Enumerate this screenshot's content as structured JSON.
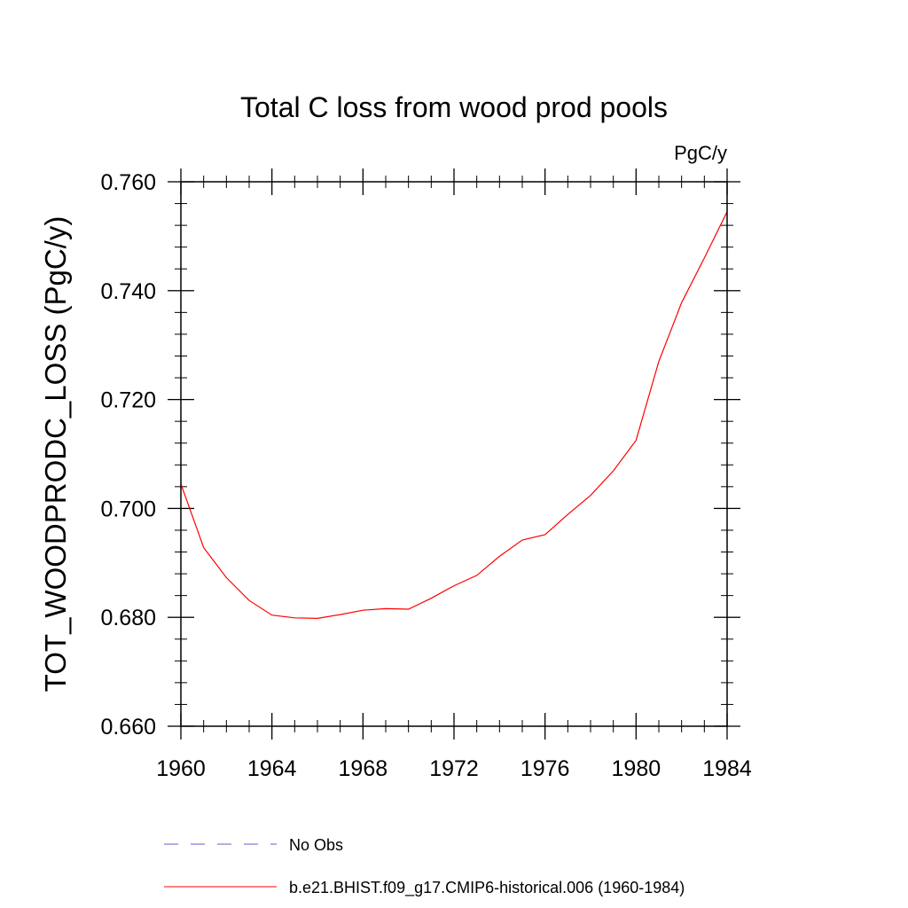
{
  "chart_data": {
    "type": "line",
    "title": "Total C loss from wood prod pools",
    "units_label": "PgC/y",
    "ylabel": "TOT_WOODPRODC_LOSS  (PgC/y)",
    "xlabel": "",
    "xlim": [
      1960,
      1984
    ],
    "ylim": [
      0.66,
      0.76
    ],
    "x_ticks": [
      "1960",
      "1964",
      "1968",
      "1972",
      "1976",
      "1980",
      "1984"
    ],
    "y_ticks": [
      "0.660",
      "0.680",
      "0.700",
      "0.720",
      "0.740",
      "0.760"
    ],
    "grid": false,
    "legend_position": "bottom",
    "series": [
      {
        "name": "No Obs",
        "color": "#6a5acd",
        "dash": "dashed",
        "x": [],
        "y": []
      },
      {
        "name": "b.e21.BHIST.f09_g17.CMIP6-historical.006 (1960-1984)",
        "color": "#ff0000",
        "dash": "solid",
        "x": [
          1960,
          1961,
          1962,
          1963,
          1964,
          1965,
          1966,
          1967,
          1968,
          1969,
          1970,
          1971,
          1972,
          1973,
          1974,
          1975,
          1976,
          1977,
          1978,
          1979,
          1980,
          1981,
          1982,
          1983,
          1984
        ],
        "y": [
          0.7045,
          0.6928,
          0.6873,
          0.6831,
          0.6804,
          0.6799,
          0.6798,
          0.6805,
          0.6813,
          0.6816,
          0.6815,
          0.6835,
          0.6858,
          0.6877,
          0.6912,
          0.6942,
          0.6952,
          0.6989,
          0.7024,
          0.7069,
          0.7125,
          0.727,
          0.7378,
          0.746,
          0.7545
        ]
      }
    ]
  }
}
